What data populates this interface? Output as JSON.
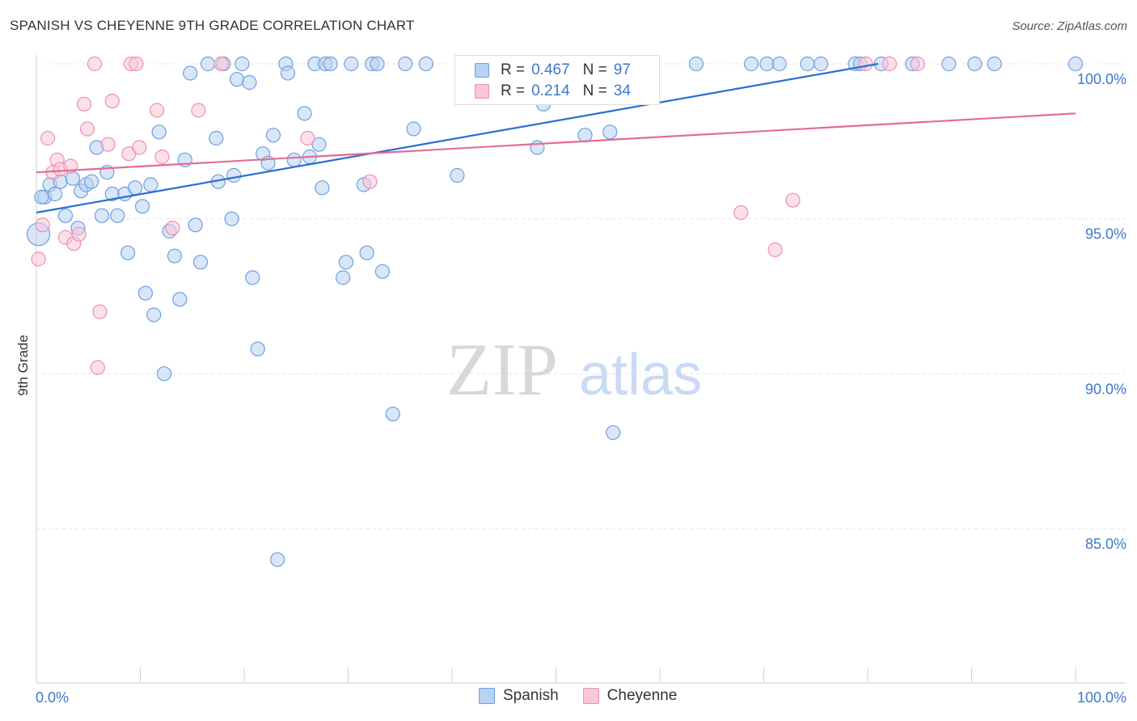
{
  "title": "SPANISH VS CHEYENNE 9TH GRADE CORRELATION CHART",
  "source": "Source: ZipAtlas.com",
  "watermark": {
    "zip": "ZIP",
    "atlas": "atlas"
  },
  "legend": {
    "rows": [
      {
        "r_label": "R =",
        "r_value": "0.467",
        "n_label": "N =",
        "n_value": "97"
      },
      {
        "r_label": "R =",
        "r_value": "0.214",
        "n_label": "N =",
        "n_value": "34"
      }
    ]
  },
  "bottom_legend": [
    "Spanish",
    "Cheyenne"
  ],
  "colors": {
    "spanish_fill": "#b8d2f2",
    "spanish_stroke": "#6d9fe0",
    "spanish_line": "#2a6fd0",
    "cheyenne_fill": "#f9c7d7",
    "cheyenne_stroke": "#ec8fb0",
    "cheyenne_line": "#e46b95",
    "tick_label": "#3f78c9",
    "grid": "#e4e4e4"
  },
  "chart_data": {
    "type": "scatter",
    "title": "SPANISH VS CHEYENNE 9TH GRADE CORRELATION CHART",
    "xlabel": "",
    "ylabel": "9th Grade",
    "xlim": [
      0,
      100
    ],
    "ylim": [
      80.5,
      100.5
    ],
    "x_tick_labels": [
      "0.0%",
      "100.0%"
    ],
    "y_ticks": [
      85,
      90,
      95,
      100
    ],
    "y_tick_labels": [
      "85.0%",
      "90.0%",
      "95.0%",
      "100.0%"
    ],
    "grid": true,
    "series": [
      {
        "name": "Spanish",
        "r": 0.467,
        "n": 97,
        "trend": {
          "x": [
            0,
            81
          ],
          "y": [
            95.2,
            100.0
          ]
        },
        "points": [
          [
            0.2,
            94.5
          ],
          [
            0.8,
            95.7
          ],
          [
            1.3,
            96.1
          ],
          [
            1.8,
            95.8
          ],
          [
            2.3,
            96.2
          ],
          [
            2.8,
            95.1
          ],
          [
            3.5,
            96.3
          ],
          [
            4,
            94.7
          ],
          [
            4.3,
            95.9
          ],
          [
            4.8,
            96.1
          ],
          [
            5.3,
            96.2
          ],
          [
            5.8,
            97.3
          ],
          [
            6.3,
            95.1
          ],
          [
            6.8,
            96.5
          ],
          [
            7.3,
            95.8
          ],
          [
            7.8,
            95.1
          ],
          [
            8.5,
            95.8
          ],
          [
            8.8,
            93.9
          ],
          [
            9.5,
            96.0
          ],
          [
            10.2,
            95.4
          ],
          [
            10.5,
            92.6
          ],
          [
            11,
            96.1
          ],
          [
            11.3,
            91.9
          ],
          [
            11.8,
            97.8
          ],
          [
            12.3,
            90.0
          ],
          [
            12.8,
            94.6
          ],
          [
            13.3,
            93.8
          ],
          [
            13.8,
            92.4
          ],
          [
            14.3,
            96.9
          ],
          [
            14.8,
            99.7
          ],
          [
            15.3,
            94.8
          ],
          [
            15.8,
            93.6
          ],
          [
            16.5,
            100
          ],
          [
            17.3,
            97.6
          ],
          [
            17.5,
            96.2
          ],
          [
            18,
            100
          ],
          [
            18.8,
            95.0
          ],
          [
            19,
            96.4
          ],
          [
            19.3,
            99.5
          ],
          [
            19.8,
            100
          ],
          [
            20.5,
            99.4
          ],
          [
            20.8,
            93.1
          ],
          [
            21.3,
            90.8
          ],
          [
            21.8,
            97.1
          ],
          [
            22.3,
            96.8
          ],
          [
            22.8,
            97.7
          ],
          [
            23.2,
            84.0
          ],
          [
            24,
            100
          ],
          [
            24.2,
            99.7
          ],
          [
            24.8,
            96.9
          ],
          [
            25.8,
            98.4
          ],
          [
            26.3,
            97.0
          ],
          [
            26.8,
            100
          ],
          [
            27.2,
            97.4
          ],
          [
            27.5,
            96.0
          ],
          [
            27.8,
            100
          ],
          [
            28.3,
            100
          ],
          [
            29.5,
            93.1
          ],
          [
            29.8,
            93.6
          ],
          [
            30.3,
            100
          ],
          [
            31.5,
            96.1
          ],
          [
            31.8,
            93.9
          ],
          [
            32.3,
            100
          ],
          [
            32.8,
            100
          ],
          [
            33.3,
            93.3
          ],
          [
            34.3,
            88.7
          ],
          [
            35.5,
            100
          ],
          [
            36.3,
            97.9
          ],
          [
            37.5,
            100
          ],
          [
            40.5,
            96.4
          ],
          [
            41.5,
            100
          ],
          [
            43.5,
            100
          ],
          [
            45.8,
            100
          ],
          [
            47.8,
            99.4
          ],
          [
            48.2,
            97.3
          ],
          [
            48.8,
            98.7
          ],
          [
            50.3,
            100
          ],
          [
            52.3,
            100
          ],
          [
            52.8,
            97.7
          ],
          [
            55.2,
            97.8
          ],
          [
            55.5,
            88.1
          ],
          [
            56.5,
            100
          ],
          [
            63.5,
            100
          ],
          [
            68.8,
            100
          ],
          [
            70.3,
            100
          ],
          [
            71.5,
            100
          ],
          [
            74.2,
            100
          ],
          [
            75.5,
            100
          ],
          [
            78.8,
            100
          ],
          [
            79.3,
            100
          ],
          [
            81.3,
            100
          ],
          [
            84.3,
            100
          ],
          [
            87.8,
            100
          ],
          [
            90.3,
            100
          ],
          [
            92.2,
            100
          ],
          [
            100,
            100
          ],
          [
            0.5,
            95.7
          ]
        ]
      },
      {
        "name": "Cheyenne",
        "r": 0.214,
        "n": 34,
        "trend": {
          "x": [
            0,
            100
          ],
          "y": [
            96.5,
            98.4
          ]
        },
        "points": [
          [
            0.2,
            93.7
          ],
          [
            0.6,
            94.8
          ],
          [
            1.1,
            97.6
          ],
          [
            1.6,
            96.5
          ],
          [
            2.0,
            96.9
          ],
          [
            2.3,
            96.6
          ],
          [
            2.8,
            94.4
          ],
          [
            3.3,
            96.7
          ],
          [
            3.6,
            94.2
          ],
          [
            4.1,
            94.5
          ],
          [
            4.6,
            98.7
          ],
          [
            4.9,
            97.9
          ],
          [
            5.6,
            100
          ],
          [
            5.9,
            90.2
          ],
          [
            6.1,
            92.0
          ],
          [
            6.9,
            97.4
          ],
          [
            7.3,
            98.8
          ],
          [
            8.9,
            97.1
          ],
          [
            9.1,
            100
          ],
          [
            9.6,
            100
          ],
          [
            9.9,
            97.3
          ],
          [
            11.6,
            98.5
          ],
          [
            12.1,
            97.0
          ],
          [
            13.1,
            94.7
          ],
          [
            15.6,
            98.5
          ],
          [
            17.8,
            100
          ],
          [
            26.1,
            97.6
          ],
          [
            32.1,
            96.2
          ],
          [
            67.8,
            95.2
          ],
          [
            71.1,
            94.0
          ],
          [
            72.8,
            95.6
          ],
          [
            79.8,
            100
          ],
          [
            82.1,
            100
          ],
          [
            84.8,
            100
          ]
        ]
      }
    ]
  }
}
